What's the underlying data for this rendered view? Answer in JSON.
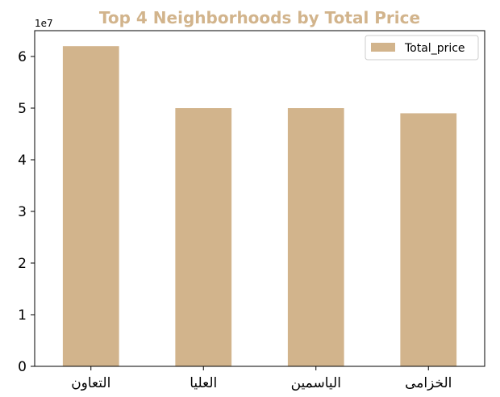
{
  "chart_data": {
    "type": "bar",
    "title": "Top 4 Neighborhoods by Total Price",
    "categories": [
      "التعاون",
      "العليا",
      "الياسمين",
      "الخزامى"
    ],
    "series": [
      {
        "name": "Total_price",
        "values": [
          62000000,
          50000000,
          50000000,
          49000000
        ]
      }
    ],
    "xlabel": "",
    "ylabel": "",
    "ylim": [
      0,
      65000000
    ],
    "yticks": [
      0,
      1,
      2,
      3,
      4,
      5,
      6
    ],
    "y_scale_label": "1e7",
    "grid": false,
    "legend_position": "top-right",
    "colors": {
      "bar": "#d2b48c",
      "title": "#d2b48c",
      "axis": "#000000"
    }
  }
}
